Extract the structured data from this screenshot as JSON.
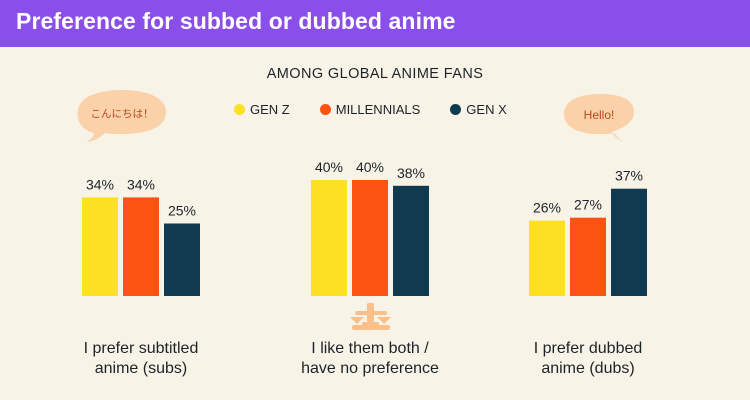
{
  "header": {
    "title": "Preference for subbed or dubbed anime"
  },
  "colors": {
    "header_bg": "#8a4fe8",
    "gen_z": "#fde023",
    "millennials": "#fd5312",
    "gen_x": "#0f3a4f",
    "bubble": "#fbd1a9"
  },
  "bubbles": {
    "left_text": "こんにちは！",
    "right_text": "Hello!"
  },
  "icons": {
    "scale": "balance-scale-icon"
  },
  "chart_data": {
    "type": "bar",
    "subtitle": "AMONG GLOBAL ANIME FANS",
    "legend_position": "top-center",
    "categories": [
      [
        "I prefer subtitled",
        "anime (subs)"
      ],
      [
        "I like them both /",
        "have no preference"
      ],
      [
        "I prefer dubbed",
        "anime (dubs)"
      ]
    ],
    "series": [
      {
        "name": "GEN Z",
        "color": "#fde023",
        "values": [
          34,
          40,
          26
        ]
      },
      {
        "name": "MILLENNIALS",
        "color": "#fd5312",
        "values": [
          34,
          40,
          27
        ]
      },
      {
        "name": "GEN X",
        "color": "#0f3a4f",
        "values": [
          25,
          38,
          37
        ]
      }
    ],
    "value_suffix": "%",
    "ylim": [
      0,
      40
    ],
    "grid": false
  }
}
